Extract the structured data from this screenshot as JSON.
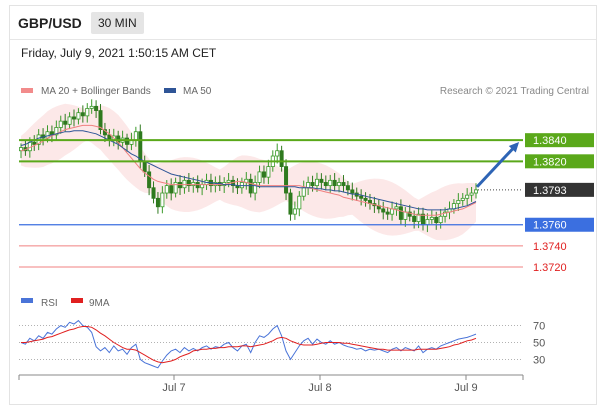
{
  "header": {
    "pair": "GBP/USD",
    "timeframe": "30 MIN"
  },
  "timestamp": "Friday, July 9, 2021 1:50:15 AM CET",
  "legend": {
    "bollinger": {
      "label": "MA 20 + Bollinger Bands",
      "color": "#f28b8b"
    },
    "ma50": {
      "label": "MA 50",
      "color": "#2f5597"
    }
  },
  "credit": "Research © 2021 Trading Central",
  "colors": {
    "up": "#3a9a2a",
    "down": "#2f7a1f",
    "support": "#3b6fe0",
    "resistance_line": "#5aa81a",
    "sub_support": "#f08080",
    "arrow": "#2e64b5"
  },
  "chart_data": [
    {
      "type": "candlestick",
      "ylim": [
        1.3703,
        1.3878
      ],
      "x": {
        "ticks": [
          "Jul 7",
          "Jul 8",
          "Jul 9"
        ]
      },
      "levels": [
        {
          "label": "1.3840",
          "value": 1.384,
          "kind": "resistance"
        },
        {
          "label": "1.3820",
          "value": 1.382,
          "kind": "resistance"
        },
        {
          "label": "1.3793",
          "value": 1.3793,
          "kind": "last"
        },
        {
          "label": "1.3760",
          "value": 1.376,
          "kind": "pivot"
        },
        {
          "label": "1.3740",
          "value": 1.374,
          "kind": "support"
        },
        {
          "label": "1.3720",
          "value": 1.372,
          "kind": "support"
        }
      ],
      "series": {
        "close": [
          1.3833,
          1.383,
          1.3838,
          1.3836,
          1.3845,
          1.3842,
          1.3848,
          1.3845,
          1.3852,
          1.3858,
          1.3855,
          1.3862,
          1.386,
          1.3866,
          1.3863,
          1.387,
          1.3872,
          1.3868,
          1.385,
          1.3845,
          1.384,
          1.3844,
          1.3838,
          1.3842,
          1.3836,
          1.384,
          1.3848,
          1.382,
          1.381,
          1.3795,
          1.3785,
          1.3777,
          1.379,
          1.3797,
          1.379,
          1.38,
          1.3795,
          1.3802,
          1.3797,
          1.38,
          1.3795,
          1.3798,
          1.3802,
          1.3797,
          1.38,
          1.3797,
          1.38,
          1.3802,
          1.3797,
          1.3795,
          1.38,
          1.3803,
          1.379,
          1.38,
          1.381,
          1.3805,
          1.3815,
          1.3825,
          1.383,
          1.3815,
          1.379,
          1.377,
          1.3775,
          1.3787,
          1.3795,
          1.38,
          1.3797,
          1.3803,
          1.38,
          1.3797,
          1.3802,
          1.3797,
          1.38,
          1.3797,
          1.3793,
          1.379,
          1.3787,
          1.3785,
          1.3783,
          1.378,
          1.3778,
          1.3775,
          1.3772,
          1.377,
          1.3775,
          1.3777,
          1.3765,
          1.3772,
          1.3768,
          1.3763,
          1.377,
          1.376,
          1.3765,
          1.3767,
          1.3762,
          1.3768,
          1.3772,
          1.3775,
          1.378,
          1.3783,
          1.3785,
          1.3788,
          1.379,
          1.3793
        ],
        "ma20": [
          1.383,
          1.3831,
          1.3833,
          1.3835,
          1.3837,
          1.3839,
          1.3842,
          1.3844,
          1.3846,
          1.3848,
          1.385,
          1.3851,
          1.3852,
          1.3853,
          1.3854,
          1.3854,
          1.3854,
          1.3853,
          1.3852,
          1.3849,
          1.3846,
          1.3842,
          1.3838,
          1.3833,
          1.3828,
          1.3823,
          1.3818,
          1.3813,
          1.3809,
          1.3806,
          1.3803,
          1.3801,
          1.38,
          1.3799,
          1.3798,
          1.3798,
          1.3798,
          1.3798,
          1.3798,
          1.3798,
          1.3798,
          1.3798,
          1.3798,
          1.3798,
          1.3798,
          1.3798,
          1.3798,
          1.3799,
          1.38,
          1.3801,
          1.3801,
          1.38,
          1.3799,
          1.3798,
          1.3797,
          1.3797,
          1.3797,
          1.3797,
          1.3797,
          1.3797,
          1.3797,
          1.3797,
          1.3797,
          1.3797,
          1.3796,
          1.3795,
          1.3794,
          1.3793,
          1.3792,
          1.3791,
          1.379,
          1.3789,
          1.3788,
          1.3786,
          1.3785,
          1.3784,
          1.3783,
          1.3782,
          1.3781,
          1.378,
          1.3779,
          1.3778,
          1.3777,
          1.3776,
          1.3775,
          1.3774,
          1.3773,
          1.3772,
          1.3771,
          1.377,
          1.3769,
          1.3769,
          1.3769,
          1.3769,
          1.3769,
          1.377,
          1.3771,
          1.3772,
          1.3773,
          1.3774,
          1.3775,
          1.3777,
          1.3779,
          1.3781
        ],
        "ma50": [
          1.3835,
          1.3836,
          1.3838,
          1.384,
          1.3842,
          1.3843,
          1.3844,
          1.3845,
          1.3846,
          1.3847,
          1.3848,
          1.3848,
          1.3849,
          1.3849,
          1.3849,
          1.3848,
          1.3847,
          1.3846,
          1.3844,
          1.3842,
          1.384,
          1.3838,
          1.3836,
          1.3833,
          1.383,
          1.3827,
          1.3825,
          1.3822,
          1.382,
          1.3818,
          1.3816,
          1.3814,
          1.3812,
          1.381,
          1.3808,
          1.3807,
          1.3806,
          1.3805,
          1.3804,
          1.3803,
          1.3802,
          1.3801,
          1.38,
          1.38,
          1.3799,
          1.3799,
          1.3798,
          1.3798,
          1.3798,
          1.3797,
          1.3797,
          1.3797,
          1.3797,
          1.3797,
          1.3796,
          1.3796,
          1.3796,
          1.3796,
          1.3796,
          1.3796,
          1.3796,
          1.3796,
          1.3796,
          1.3795,
          1.3795,
          1.3795,
          1.3795,
          1.3794,
          1.3794,
          1.3793,
          1.3793,
          1.3792,
          1.3792,
          1.3791,
          1.379,
          1.3789,
          1.3789,
          1.3788,
          1.3787,
          1.3786,
          1.3785,
          1.3784,
          1.3783,
          1.3782,
          1.3781,
          1.378,
          1.3779,
          1.3778,
          1.3777,
          1.3776,
          1.3775,
          1.3775,
          1.3774,
          1.3774,
          1.3774,
          1.3774,
          1.3774,
          1.3775,
          1.3775,
          1.3776,
          1.3777,
          1.3778,
          1.378,
          1.3782
        ]
      },
      "projection": {
        "from": 1.3793,
        "to": 1.384
      }
    },
    {
      "type": "line",
      "legend": [
        {
          "name": "RSI",
          "color": "#4a74d8"
        },
        {
          "name": "9MA",
          "color": "#e02020"
        }
      ],
      "ylim": [
        15,
        85
      ],
      "y_ticks": [
        70,
        50,
        30
      ],
      "series": [
        {
          "name": "RSI",
          "values": [
            50,
            48,
            55,
            52,
            58,
            55,
            62,
            60,
            66,
            70,
            68,
            74,
            72,
            76,
            70,
            68,
            62,
            45,
            40,
            44,
            38,
            46,
            40,
            42,
            36,
            44,
            48,
            30,
            26,
            24,
            22,
            20,
            28,
            35,
            40,
            42,
            38,
            44,
            40,
            43,
            40,
            44,
            46,
            42,
            45,
            44,
            48,
            50,
            44,
            40,
            46,
            48,
            38,
            50,
            58,
            56,
            60,
            66,
            70,
            58,
            40,
            30,
            38,
            46,
            52,
            55,
            48,
            54,
            50,
            48,
            52,
            48,
            50,
            47,
            45,
            44,
            42,
            43,
            40,
            42,
            41,
            42,
            40,
            38,
            42,
            44,
            40,
            44,
            42,
            40,
            46,
            38,
            42,
            44,
            42,
            46,
            48,
            50,
            52,
            54,
            55,
            56,
            58,
            60
          ]
        },
        {
          "name": "9MA",
          "values": [
            50,
            50,
            51,
            52,
            53,
            54,
            56,
            57,
            59,
            61,
            63,
            65,
            66,
            68,
            69,
            69,
            68,
            65,
            61,
            58,
            54,
            50,
            47,
            44,
            42,
            42,
            41,
            38,
            35,
            32,
            29,
            27,
            26,
            27,
            28,
            30,
            33,
            35,
            37,
            40,
            41,
            42,
            42,
            43,
            43,
            44,
            44,
            45,
            45,
            45,
            46,
            46,
            45,
            46,
            47,
            48,
            50,
            52,
            55,
            56,
            55,
            52,
            50,
            48,
            47,
            47,
            47,
            48,
            49,
            50,
            50,
            50,
            50,
            49,
            49,
            48,
            47,
            46,
            45,
            44,
            43,
            42,
            42,
            41,
            41,
            41,
            41,
            41,
            41,
            41,
            42,
            42,
            42,
            42,
            42,
            43,
            44,
            45,
            47,
            48,
            50,
            52,
            53,
            55
          ]
        }
      ]
    }
  ]
}
